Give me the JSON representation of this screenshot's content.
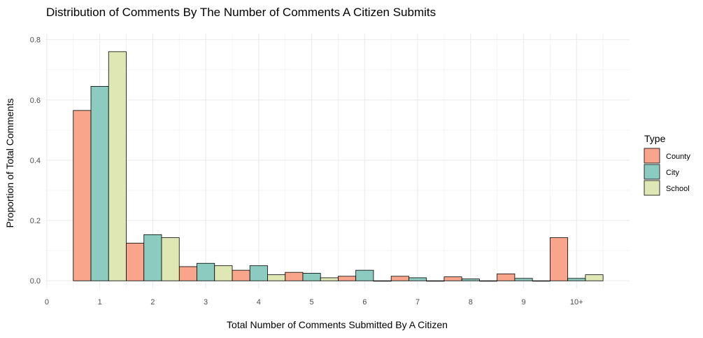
{
  "chart_data": {
    "type": "bar",
    "title": "Distribution of Comments By The Number of Comments A Citizen Submits",
    "xlabel": "Total Number of Comments Submitted By A Citizen",
    "ylabel": "Proportion of Total Comments",
    "categories": [
      "1",
      "2",
      "3",
      "4",
      "5",
      "6",
      "7",
      "8",
      "9",
      "10+"
    ],
    "x_ticks": [
      "0",
      "1",
      "2",
      "3",
      "4",
      "5",
      "6",
      "7",
      "8",
      "9",
      "10+"
    ],
    "y_ticks": [
      "0.0",
      "0.2",
      "0.4",
      "0.6",
      "0.8"
    ],
    "ylim": [
      -0.025,
      0.82
    ],
    "grid": true,
    "legend_position": "right",
    "legend_title": "Type",
    "series": [
      {
        "name": "County",
        "color": "#f8a58b",
        "values": [
          0.565,
          0.125,
          0.047,
          0.035,
          0.028,
          0.015,
          0.015,
          0.013,
          0.023,
          0.143
        ]
      },
      {
        "name": "City",
        "color": "#8ccbbf",
        "values": [
          0.645,
          0.153,
          0.058,
          0.05,
          0.025,
          0.035,
          0.01,
          0.006,
          0.008,
          0.008
        ]
      },
      {
        "name": "School",
        "color": "#dfe8b5",
        "values": [
          0.76,
          0.143,
          0.05,
          0.02,
          0.01,
          0.0,
          0.0,
          0.0,
          0.0,
          0.02
        ]
      }
    ]
  }
}
